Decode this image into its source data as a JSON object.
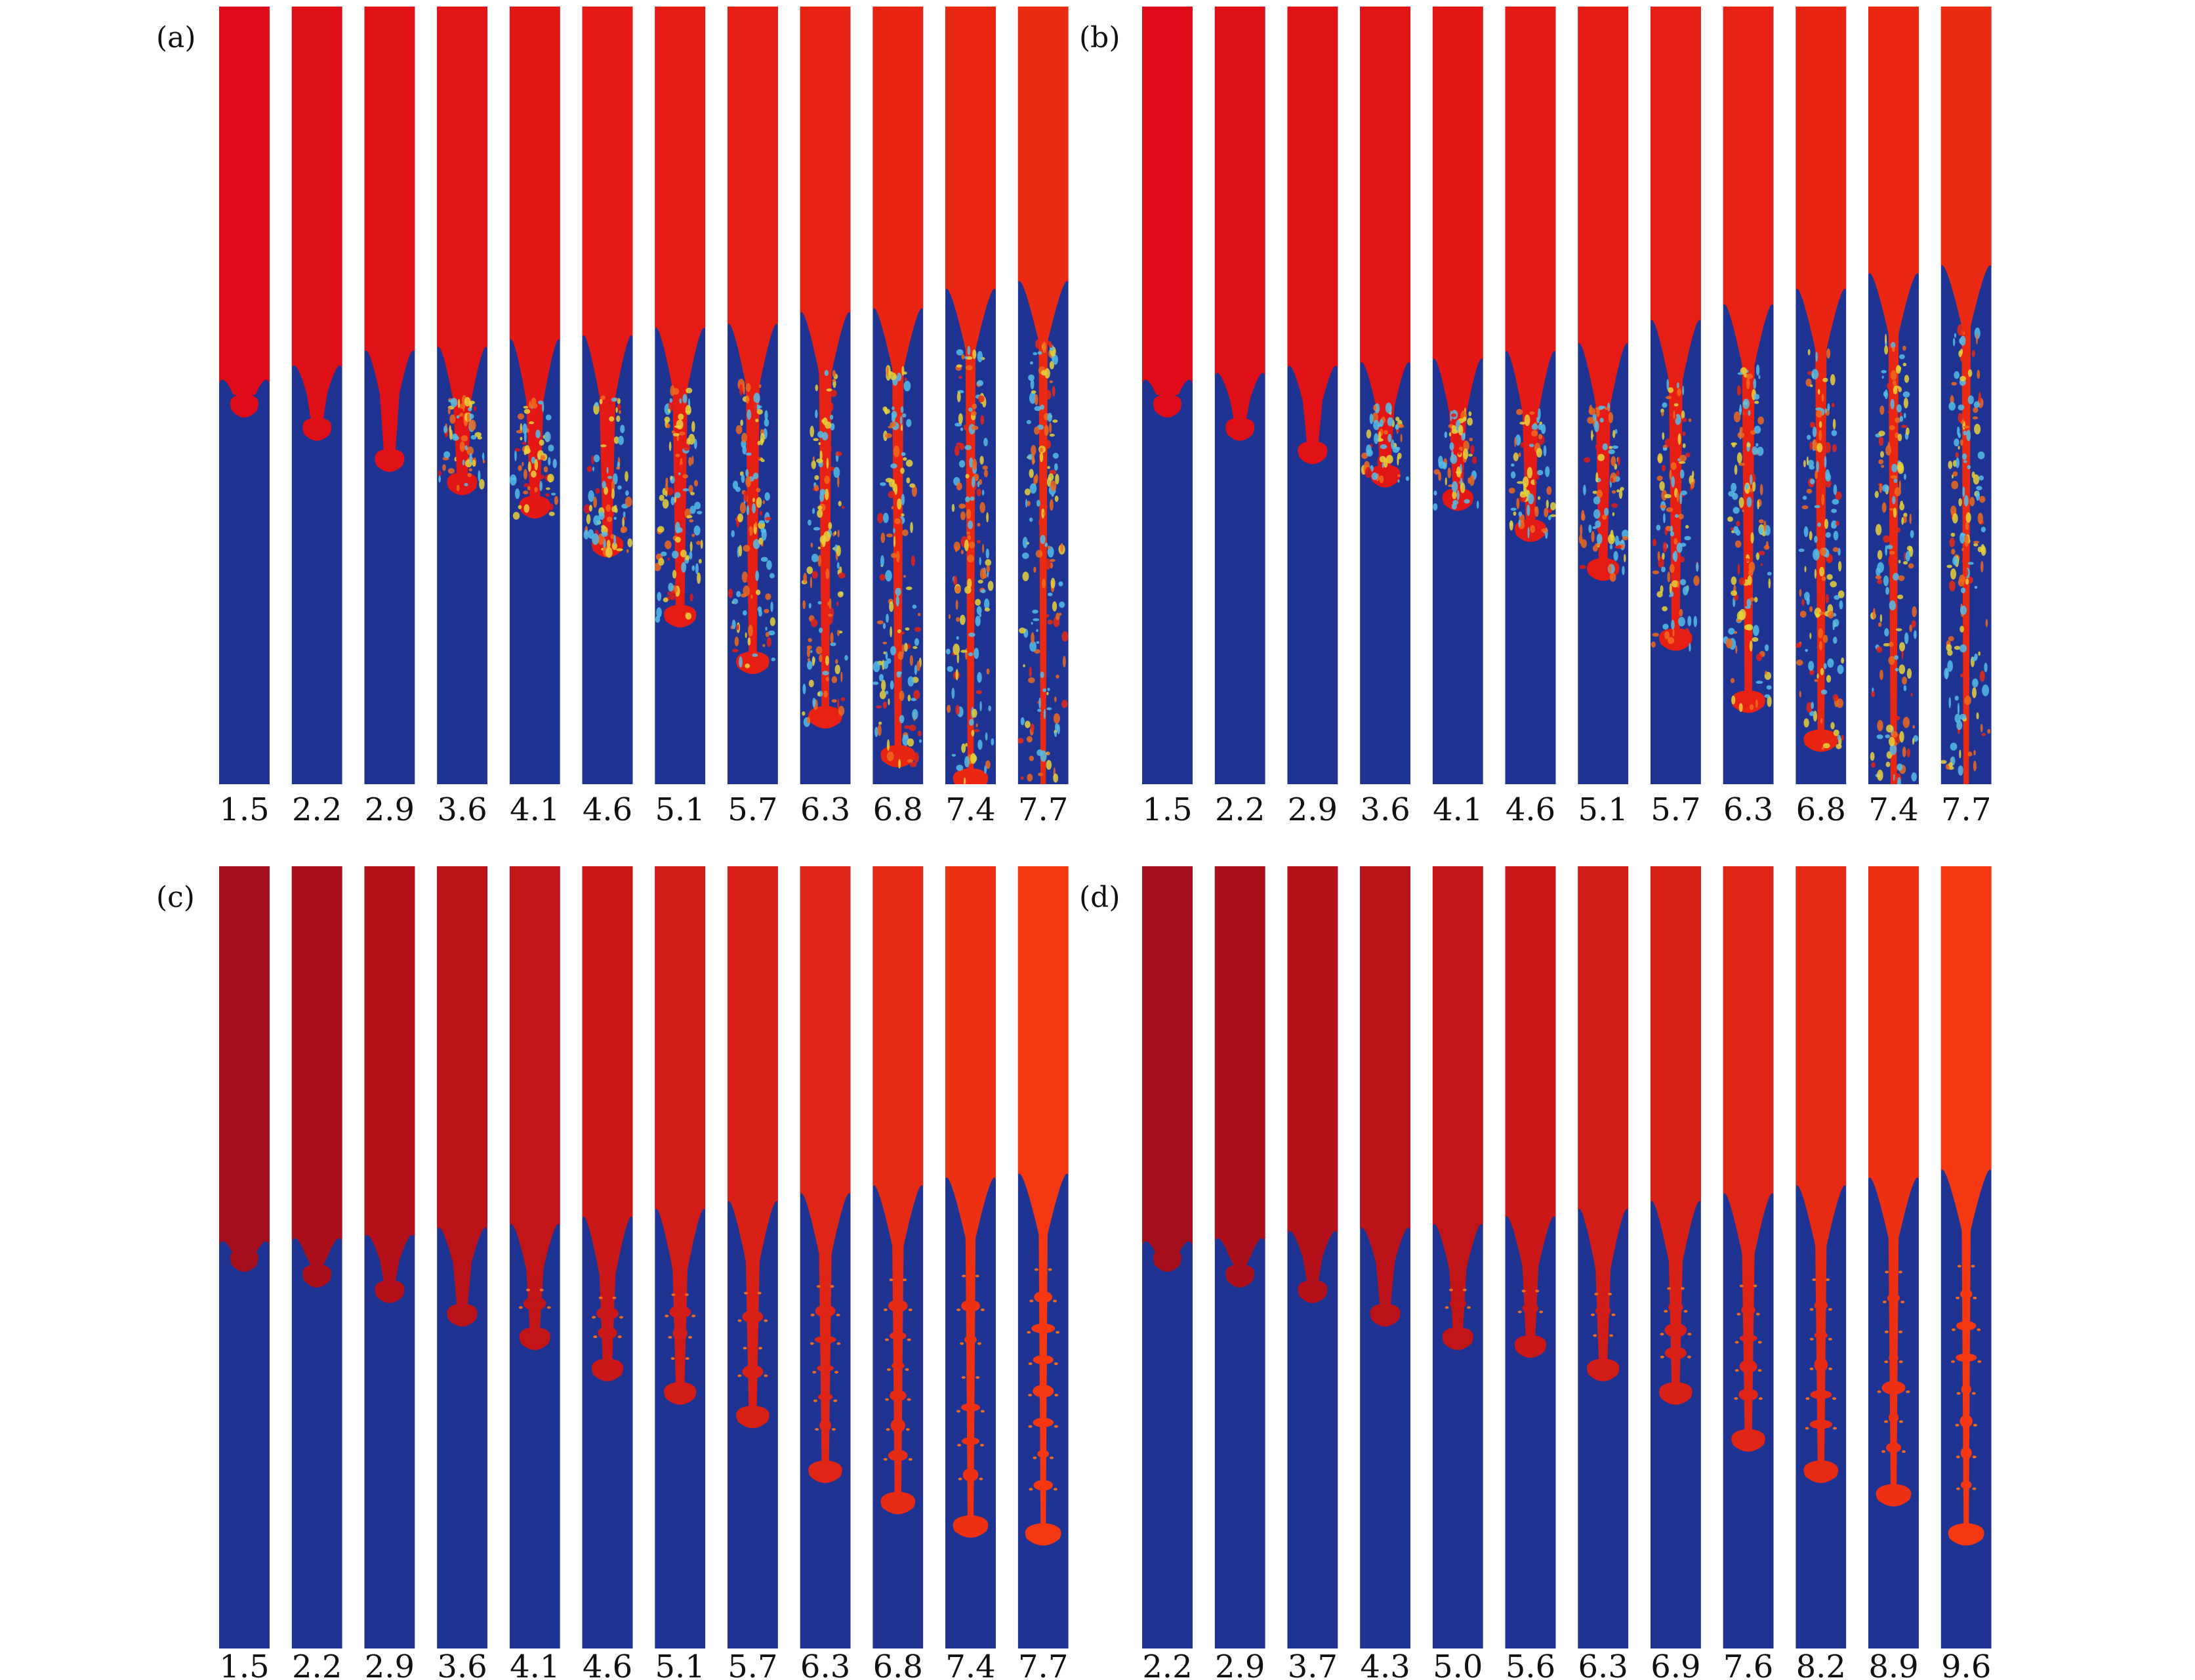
{
  "figure": {
    "colors": {
      "heavy_fluid": "#e6101a",
      "light_fluid": "#1f3392",
      "mixing_yellow": "#e8d23a",
      "mixing_cyan": "#55bde6",
      "mixing_orange": "#f06a1c"
    },
    "panels": [
      {
        "id": "a",
        "label": "(a)",
        "style": "turbulent-mixing",
        "times": [
          "1.5",
          "2.2",
          "2.9",
          "3.6",
          "4.1",
          "4.6",
          "5.1",
          "5.7",
          "6.3",
          "6.8",
          "7.4",
          "7.7"
        ],
        "bubble_depth": [
          0.0,
          0.02,
          0.04,
          0.045,
          0.055,
          0.06,
          0.07,
          0.075,
          0.09,
          0.095,
          0.12,
          0.13
        ],
        "spike_depth": [
          0.04,
          0.07,
          0.11,
          0.14,
          0.17,
          0.22,
          0.31,
          0.37,
          0.44,
          0.49,
          0.52,
          0.54
        ]
      },
      {
        "id": "b",
        "label": "(b)",
        "style": "turbulent-mixing",
        "times": [
          "1.5",
          "2.2",
          "2.9",
          "3.6",
          "4.1",
          "4.6",
          "5.1",
          "5.7",
          "6.3",
          "6.8",
          "7.4",
          "7.7"
        ],
        "bubble_depth": [
          0.0,
          0.01,
          0.02,
          0.025,
          0.03,
          0.04,
          0.05,
          0.08,
          0.1,
          0.12,
          0.14,
          0.15
        ],
        "spike_depth": [
          0.04,
          0.07,
          0.1,
          0.13,
          0.16,
          0.2,
          0.25,
          0.34,
          0.42,
          0.47,
          0.54,
          0.56
        ]
      },
      {
        "id": "c",
        "label": "(c)",
        "style": "laminar-spikes",
        "times": [
          "1.5",
          "2.2",
          "2.9",
          "3.6",
          "4.1",
          "4.6",
          "5.1",
          "5.7",
          "6.3",
          "6.8",
          "7.4",
          "7.7"
        ],
        "bubble_depth": [
          0.0,
          0.005,
          0.01,
          0.02,
          0.025,
          0.035,
          0.045,
          0.055,
          0.065,
          0.075,
          0.085,
          0.09
        ],
        "spike_depth": [
          0.03,
          0.05,
          0.07,
          0.1,
          0.13,
          0.17,
          0.2,
          0.23,
          0.3,
          0.34,
          0.37,
          0.38
        ]
      },
      {
        "id": "d",
        "label": "(d)",
        "style": "laminar-spikes",
        "times": [
          "2.2",
          "2.9",
          "3.7",
          "4.3",
          "5.0",
          "5.6",
          "6.3",
          "6.9",
          "7.6",
          "8.2",
          "8.9",
          "9.6"
        ],
        "bubble_depth": [
          0.0,
          0.005,
          0.015,
          0.02,
          0.025,
          0.035,
          0.045,
          0.055,
          0.065,
          0.075,
          0.085,
          0.095
        ],
        "spike_depth": [
          0.03,
          0.05,
          0.07,
          0.1,
          0.13,
          0.14,
          0.17,
          0.2,
          0.26,
          0.3,
          0.33,
          0.38
        ]
      }
    ]
  }
}
